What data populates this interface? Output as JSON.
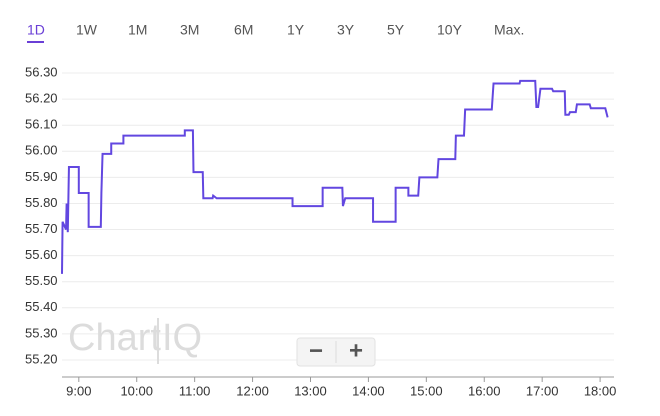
{
  "tabs": [
    "1D",
    "1W",
    "1M",
    "3M",
    "6M",
    "1Y",
    "3Y",
    "5Y",
    "10Y",
    "Max."
  ],
  "active_tab": 0,
  "watermark": [
    "Chart",
    "IQ"
  ],
  "zoom_buttons": [
    "−",
    "+"
  ],
  "chart_data": {
    "type": "line",
    "color": "#6247e0",
    "grid": true,
    "xlim": [
      8.71,
      18.24
    ],
    "ylim": [
      55.15,
      56.35
    ],
    "xticks": [
      {
        "value": 9,
        "label": "9:00"
      },
      {
        "value": 10,
        "label": "10:00"
      },
      {
        "value": 11,
        "label": "11:00"
      },
      {
        "value": 12,
        "label": "12:00"
      },
      {
        "value": 13,
        "label": "13:00"
      },
      {
        "value": 14,
        "label": "14:00"
      },
      {
        "value": 15,
        "label": "15:00"
      },
      {
        "value": 16,
        "label": "16:00"
      },
      {
        "value": 17,
        "label": "17:00"
      },
      {
        "value": 18,
        "label": "18:00"
      }
    ],
    "yticks": [
      {
        "value": 55.2,
        "label": "55.20"
      },
      {
        "value": 55.3,
        "label": "55.30"
      },
      {
        "value": 55.4,
        "label": "55.40"
      },
      {
        "value": 55.5,
        "label": "55.50"
      },
      {
        "value": 55.6,
        "label": "55.60"
      },
      {
        "value": 55.7,
        "label": "55.70"
      },
      {
        "value": 55.8,
        "label": "55.80"
      },
      {
        "value": 55.9,
        "label": "55.90"
      },
      {
        "value": 56,
        "label": "56.00"
      },
      {
        "value": 56.1,
        "label": "56.10"
      },
      {
        "value": 56.2,
        "label": "56.20"
      },
      {
        "value": 56.3,
        "label": "56.30"
      }
    ],
    "x": [
      8.71,
      8.72,
      8.78,
      8.79,
      8.81,
      8.83,
      9.0,
      9.0,
      9.17,
      9.17,
      9.38,
      9.39,
      9.41,
      9.56,
      9.56,
      9.77,
      9.77,
      10.83,
      10.83,
      10.97,
      10.98,
      11.14,
      11.15,
      11.31,
      11.32,
      11.38,
      12.69,
      12.69,
      13.21,
      13.21,
      13.55,
      13.56,
      13.6,
      14.08,
      14.08,
      14.47,
      14.47,
      14.69,
      14.69,
      14.86,
      14.88,
      15.19,
      15.21,
      15.5,
      15.51,
      15.65,
      15.67,
      16.13,
      16.16,
      16.61,
      16.62,
      16.88,
      16.9,
      16.93,
      16.97,
      17.17,
      17.19,
      17.39,
      17.4,
      17.46,
      17.48,
      17.58,
      17.6,
      17.82,
      17.84,
      18.09,
      18.13
    ],
    "values": [
      55.53,
      55.73,
      55.7,
      55.8,
      55.69,
      55.94,
      55.94,
      55.84,
      55.84,
      55.71,
      55.71,
      55.84,
      55.99,
      55.99,
      56.03,
      56.03,
      56.06,
      56.06,
      56.08,
      56.08,
      55.92,
      55.92,
      55.82,
      55.82,
      55.83,
      55.82,
      55.82,
      55.79,
      55.79,
      55.86,
      55.86,
      55.79,
      55.82,
      55.82,
      55.73,
      55.73,
      55.86,
      55.86,
      55.83,
      55.83,
      55.9,
      55.9,
      55.97,
      55.97,
      56.06,
      56.06,
      56.16,
      56.16,
      56.26,
      56.26,
      56.27,
      56.27,
      56.17,
      56.17,
      56.24,
      56.24,
      56.23,
      56.23,
      56.14,
      56.14,
      56.15,
      56.15,
      56.18,
      56.18,
      56.165,
      56.165,
      56.13
    ]
  }
}
